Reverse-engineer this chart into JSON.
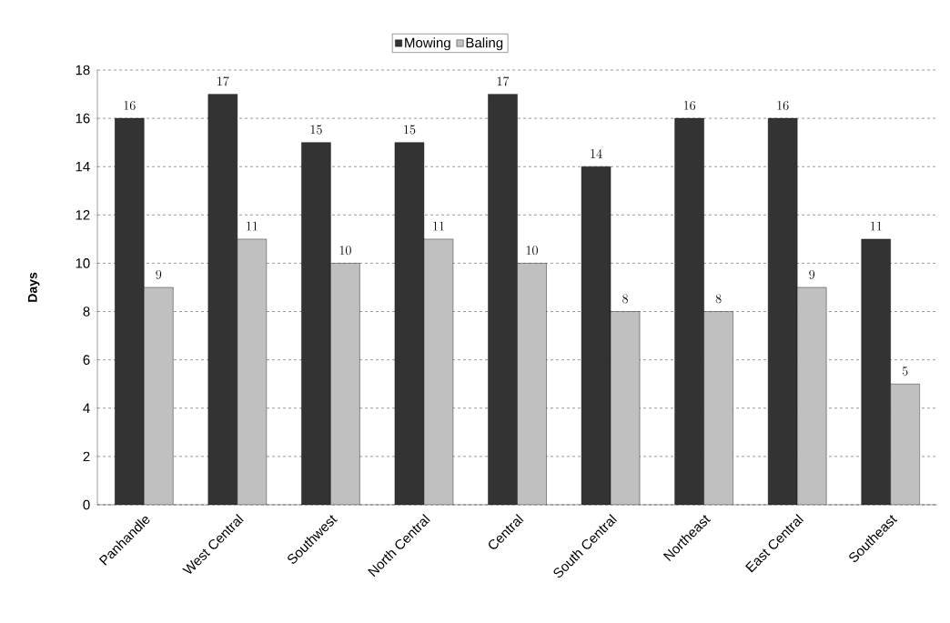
{
  "chart_data": {
    "type": "bar",
    "ylabel": "Days",
    "categories": [
      "Panhandle",
      "West Central",
      "Southwest",
      "North Central",
      "Central",
      "South Central",
      "Northeast",
      "East Central",
      "Southeast"
    ],
    "series": [
      {
        "name": "Mowing",
        "color": "#333333",
        "values": [
          16,
          17,
          15,
          15,
          17,
          14,
          16,
          16,
          11
        ]
      },
      {
        "name": "Baling",
        "color": "#c0c0c0",
        "values": [
          9,
          11,
          10,
          11,
          10,
          8,
          8,
          9,
          5
        ]
      }
    ],
    "ylim": [
      0,
      18
    ],
    "yticks": [
      0,
      2,
      4,
      6,
      8,
      10,
      12,
      14,
      16,
      18
    ],
    "grid": "y",
    "legend": "top",
    "data_labels": true
  }
}
